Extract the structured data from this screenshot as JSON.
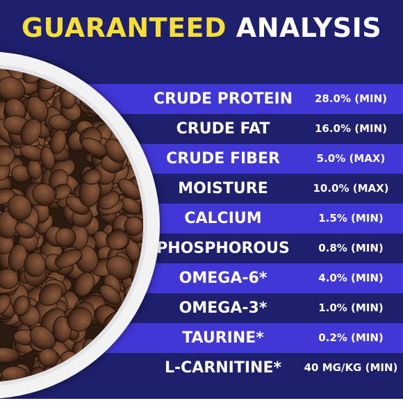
{
  "title": {
    "part1": "GUARANTEED",
    "part2": "ANALYSIS"
  },
  "colors": {
    "background": "#1e1f6d",
    "stripe": "#4136d6",
    "title_accent": "#f7dd37",
    "text": "#ffffff"
  },
  "image": {
    "subject": "bowl-of-dry-kibble"
  },
  "rows": [
    {
      "label": "CRUDE PROTEIN",
      "value": "28.0% (MIN)"
    },
    {
      "label": "CRUDE FAT",
      "value": "16.0% (MIN)"
    },
    {
      "label": "CRUDE FIBER",
      "value": "5.0% (MAX)"
    },
    {
      "label": "MOISTURE",
      "value": "10.0% (MAX)"
    },
    {
      "label": "CALCIUM",
      "value": "1.5% (MIN)"
    },
    {
      "label": "PHOSPHOROUS",
      "value": "0.8% (MIN)"
    },
    {
      "label": "OMEGA-6*",
      "value": "4.0% (MIN)"
    },
    {
      "label": "OMEGA-3*",
      "value": "1.0% (MIN)"
    },
    {
      "label": "TAURINE*",
      "value": "0.2% (MIN)"
    },
    {
      "label": "L-CARNITINE*",
      "value": "40 MG/KG (MIN)"
    }
  ]
}
